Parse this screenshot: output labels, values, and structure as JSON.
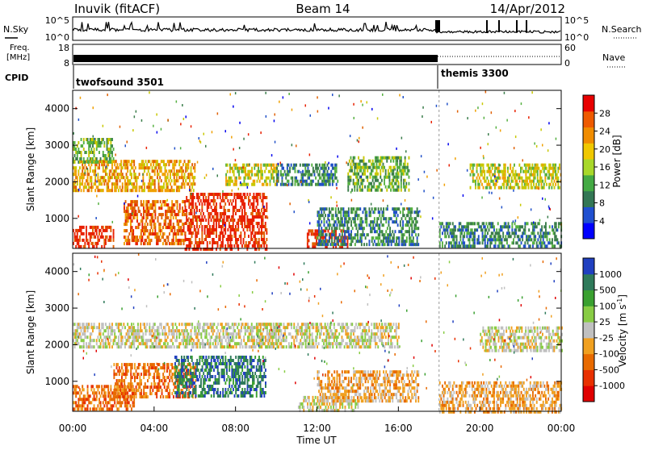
{
  "header": {
    "station": "Inuvik (fitACF)",
    "beam": "Beam 14",
    "date": "14/Apr/2012"
  },
  "nsky": {
    "label": "N.Sky",
    "ticks_left": [
      "10^5",
      "10^0"
    ],
    "ticks_right": [
      "10^5",
      "10^0"
    ],
    "right_label": "N.Search"
  },
  "freq": {
    "label_lines": [
      "Freq.",
      "[MHz]"
    ],
    "ticks_left": [
      "18",
      "8"
    ],
    "ticks_right": [
      "60",
      "0"
    ],
    "right_label": "Nave"
  },
  "cpid": {
    "label": "CPID",
    "modes": [
      {
        "name": "twofsound 3501",
        "start_hour": 0
      },
      {
        "name": "themis 3300",
        "start_hour": 18
      }
    ]
  },
  "colors": {
    "power": [
      "#0000ee",
      "#2050c8",
      "#3a7d4a",
      "#55b040",
      "#c8c800",
      "#f0a000",
      "#e06000",
      "#e82000"
    ],
    "velocity": [
      "#2040c0",
      "#2f7a5a",
      "#3aa030",
      "#88cc44",
      "#c0c0c0",
      "#f0a020",
      "#e86a00",
      "#e83000",
      "#e00000"
    ],
    "scale_bar": [
      "#0000ff",
      "#2050d0",
      "#337755",
      "#44aa44",
      "#a8d82a",
      "#f0c800",
      "#f08c00",
      "#ee5a00",
      "#e80000"
    ],
    "vel_scale_bar": [
      "#e00000",
      "#e83000",
      "#e86a00",
      "#f0a020",
      "#c0c0c0",
      "#88cc44",
      "#3aa030",
      "#2f7a5a",
      "#2040c0"
    ]
  },
  "chart_data": [
    {
      "type": "heatmap",
      "panel": "power",
      "ylabel": "Slant Range [km]",
      "ylim": [
        180,
        4500
      ],
      "yticks": [
        1000,
        2000,
        3000,
        4000
      ],
      "colorbar_label": "Power [dB]",
      "colorbar_ticks": [
        "4",
        "8",
        "12",
        "16",
        "20",
        "24",
        "28"
      ],
      "colorbar_range": [
        0,
        32
      ],
      "regions": [
        {
          "t0": 0.0,
          "t1": 2.0,
          "r0": 200,
          "r1": 800,
          "level": 7
        },
        {
          "t0": 2.5,
          "t1": 5.5,
          "r0": 300,
          "r1": 1500,
          "level": 6
        },
        {
          "t0": 5.5,
          "t1": 9.5,
          "r0": 200,
          "r1": 1700,
          "level": 7
        },
        {
          "t0": 0.0,
          "t1": 6.0,
          "r0": 1800,
          "r1": 2600,
          "level": 5
        },
        {
          "t0": 7.5,
          "t1": 10.0,
          "r0": 1900,
          "r1": 2500,
          "level": 4
        },
        {
          "t0": 10.0,
          "t1": 13.0,
          "r0": 1900,
          "r1": 2500,
          "level": 2
        },
        {
          "t0": 11.5,
          "t1": 13.5,
          "r0": 200,
          "r1": 700,
          "level": 7
        },
        {
          "t0": 13.5,
          "t1": 16.5,
          "r0": 1800,
          "r1": 2700,
          "level": 3
        },
        {
          "t0": 12.0,
          "t1": 17.0,
          "r0": 300,
          "r1": 1300,
          "level": 2
        },
        {
          "t0": 18.0,
          "t1": 24.0,
          "r0": 200,
          "r1": 900,
          "level": 2
        },
        {
          "t0": 19.5,
          "t1": 24.0,
          "r0": 1800,
          "r1": 2500,
          "level": 4
        },
        {
          "t0": 0.0,
          "t1": 2.0,
          "r0": 2500,
          "r1": 3200,
          "level": 3
        }
      ]
    },
    {
      "type": "heatmap",
      "panel": "velocity",
      "ylabel": "Slant Range [km]",
      "xlabel": "Time UT",
      "ylim": [
        180,
        4500
      ],
      "yticks": [
        1000,
        2000,
        3000,
        4000
      ],
      "xticks": [
        "00:00",
        "04:00",
        "08:00",
        "12:00",
        "16:00",
        "20:00",
        "00:00"
      ],
      "xlim_hours": [
        0,
        24
      ],
      "colorbar_label": "Velocity [m s^-1]",
      "colorbar_ticks": [
        "-1000",
        "-500",
        "-100",
        "-25",
        "25",
        "100",
        "500",
        "1000"
      ],
      "colorbar_range": [
        -2000,
        2000
      ],
      "regions": [
        {
          "t0": 0.0,
          "t1": 3.0,
          "r0": 200,
          "r1": 900,
          "level": 6
        },
        {
          "t0": 2.0,
          "t1": 6.0,
          "r0": 600,
          "r1": 1500,
          "level": 6
        },
        {
          "t0": 5.0,
          "t1": 9.5,
          "r0": 600,
          "r1": 1700,
          "level": 1
        },
        {
          "t0": 0.0,
          "t1": 10.0,
          "r0": 1900,
          "r1": 2600,
          "level": 4
        },
        {
          "t0": 9.0,
          "t1": 16.0,
          "r0": 1900,
          "r1": 2600,
          "level": 4
        },
        {
          "t0": 11.0,
          "t1": 14.0,
          "r0": 200,
          "r1": 600,
          "level": 4
        },
        {
          "t0": 12.0,
          "t1": 17.0,
          "r0": 500,
          "r1": 1300,
          "level": 5
        },
        {
          "t0": 18.0,
          "t1": 24.0,
          "r0": 200,
          "r1": 1000,
          "level": 5
        },
        {
          "t0": 20.0,
          "t1": 24.0,
          "r0": 1800,
          "r1": 2500,
          "level": 4
        }
      ]
    }
  ]
}
